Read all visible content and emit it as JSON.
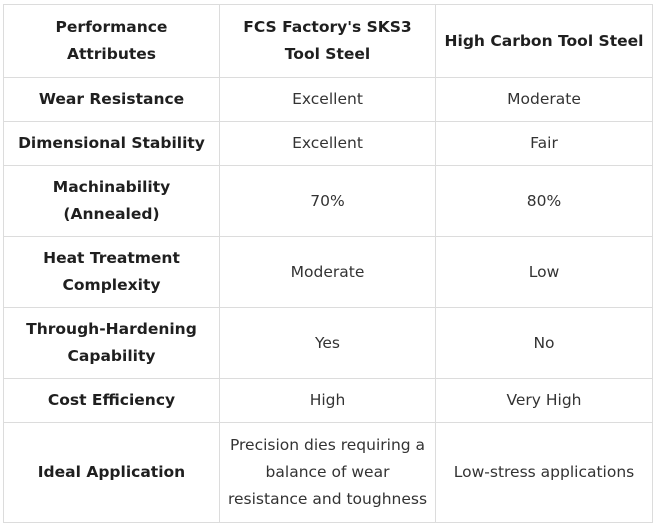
{
  "table": {
    "headers": [
      "Performance Attributes",
      "FCS Factory's SKS3 Tool Steel",
      "High Carbon Tool Steel"
    ],
    "rows": [
      {
        "attribute": "Wear Resistance",
        "sks3": "Excellent",
        "high_carbon": "Moderate"
      },
      {
        "attribute": "Dimensional Stability",
        "sks3": "Excellent",
        "high_carbon": "Fair"
      },
      {
        "attribute": "Machinability (Annealed)",
        "sks3": "70%",
        "high_carbon": "80%"
      },
      {
        "attribute": "Heat Treatment Complexity",
        "sks3": "Moderate",
        "high_carbon": "Low"
      },
      {
        "attribute": "Through-Hardening Capability",
        "sks3": "Yes",
        "high_carbon": "No"
      },
      {
        "attribute": "Cost Efficiency",
        "sks3": "High",
        "high_carbon": "Very High"
      },
      {
        "attribute": "Ideal Application",
        "sks3": "Precision dies requiring a balance of wear resistance and toughness",
        "high_carbon": "Low-stress applications"
      }
    ]
  }
}
